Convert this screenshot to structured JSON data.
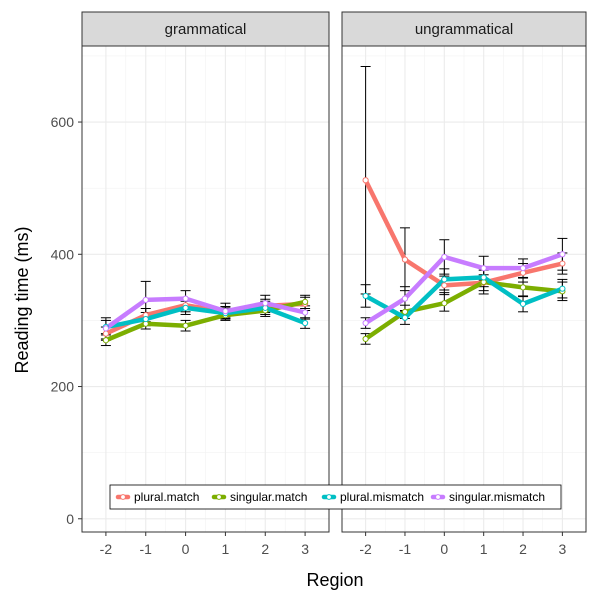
{
  "chart_data": {
    "type": "line",
    "xlabel": "Region",
    "ylabel": "Reading time (ms)",
    "x": [
      -2,
      -1,
      0,
      1,
      2,
      3
    ],
    "x_tick_labels": [
      "-2",
      "-1",
      "0",
      "1",
      "2",
      "3"
    ],
    "y_ticks": [
      0,
      200,
      400,
      600
    ],
    "y_tick_labels": [
      "0",
      "200",
      "400",
      "600"
    ],
    "ylim": [
      -20,
      715
    ],
    "xlim": [
      -2.6,
      3.6
    ],
    "grid": true,
    "legend_position": "bottom, inside first panel",
    "panels": [
      {
        "name": "grammatical",
        "series": [
          {
            "name": "plural.match",
            "color": "#F8766D",
            "values": [
              280,
              308,
              323,
              313,
              322,
              325
            ],
            "err": [
              [
                270,
                290
              ],
              [
                298,
                318
              ],
              [
                313,
                333
              ],
              [
                305,
                321
              ],
              [
                312,
                332
              ],
              [
                315,
                335
              ]
            ]
          },
          {
            "name": "singular.match",
            "color": "#7CAE00",
            "values": [
              270,
              295,
              292,
              308,
              315,
              328
            ],
            "err": [
              [
                262,
                278
              ],
              [
                287,
                303
              ],
              [
                284,
                300
              ],
              [
                300,
                316
              ],
              [
                306,
                324
              ],
              [
                318,
                338
              ]
            ]
          },
          {
            "name": "plural.mismatch",
            "color": "#00BFC4",
            "values": [
              290,
              302,
              319,
              311,
              319,
              296
            ],
            "err": [
              [
                280,
                300
              ],
              [
                292,
                312
              ],
              [
                309,
                329
              ],
              [
                303,
                319
              ],
              [
                309,
                329
              ],
              [
                288,
                304
              ]
            ]
          },
          {
            "name": "singular.mismatch",
            "color": "#C77CFF",
            "values": [
              288,
              331,
              333,
              314,
              326,
              312
            ],
            "err": [
              [
                272,
                304
              ],
              [
                303,
                359
              ],
              [
                321,
                345
              ],
              [
                302,
                326
              ],
              [
                314,
                338
              ],
              [
                302,
                322
              ]
            ]
          }
        ]
      },
      {
        "name": "ungrammatical",
        "series": [
          {
            "name": "plural.match",
            "color": "#F8766D",
            "values": [
              512,
              392,
              353,
              357,
              372,
              386
            ],
            "err": [
              [
                340,
                684
              ],
              [
                345,
                440
              ],
              [
                339,
                367
              ],
              [
                345,
                369
              ],
              [
                358,
                386
              ],
              [
                370,
                402
              ]
            ]
          },
          {
            "name": "singular.match",
            "color": "#7CAE00",
            "values": [
              272,
              313,
              326,
              358,
              350,
              344
            ],
            "err": [
              [
                264,
                280
              ],
              [
                303,
                323
              ],
              [
                314,
                342
              ],
              [
                340,
                376
              ],
              [
                336,
                364
              ],
              [
                330,
                358
              ]
            ]
          },
          {
            "name": "plural.mismatch",
            "color": "#00BFC4",
            "values": [
              337,
              304,
              362,
              365,
              325,
              348
            ],
            "err": [
              [
                320,
                354
              ],
              [
                294,
                314
              ],
              [
                346,
                378
              ],
              [
                351,
                379
              ],
              [
                313,
                337
              ],
              [
                334,
                362
              ]
            ]
          },
          {
            "name": "singular.mismatch",
            "color": "#C77CFF",
            "values": [
              296,
              333,
              396,
              379,
              379,
              400
            ],
            "err": [
              [
                288,
                304
              ],
              [
                315,
                351
              ],
              [
                370,
                422
              ],
              [
                361,
                397
              ],
              [
                365,
                393
              ],
              [
                376,
                424
              ]
            ]
          }
        ]
      }
    ]
  }
}
